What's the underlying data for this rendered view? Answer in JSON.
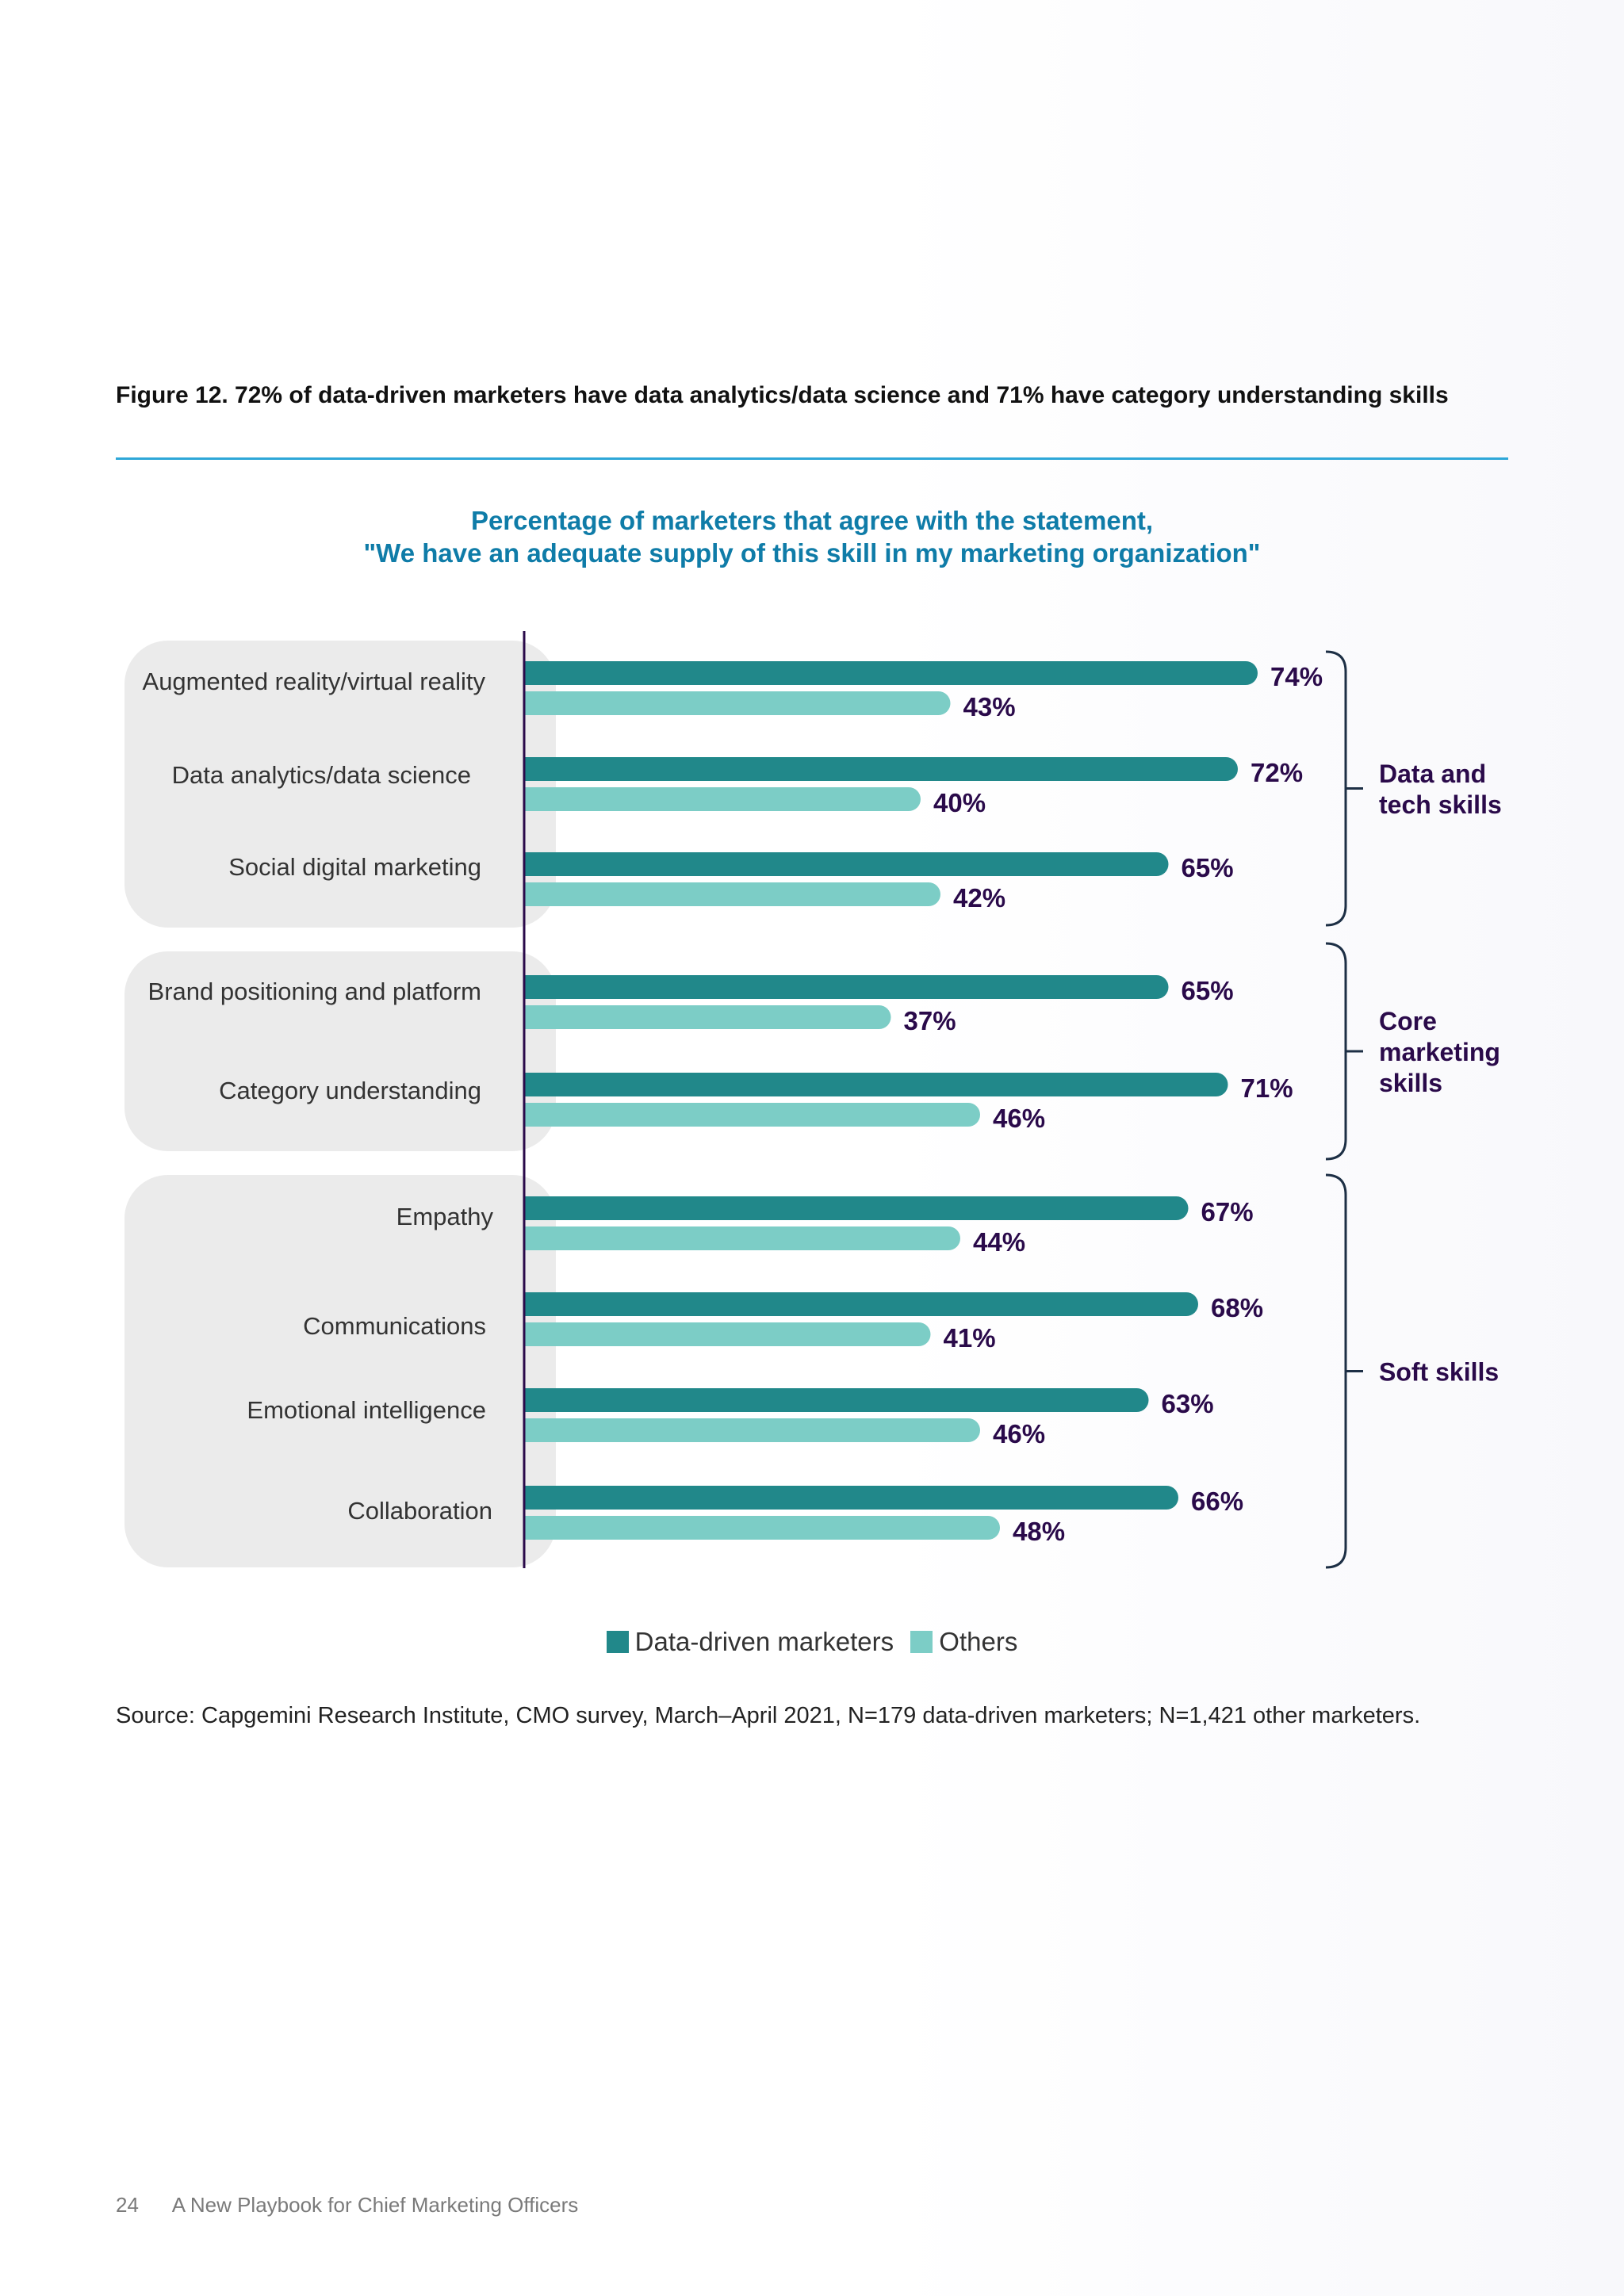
{
  "figure": {
    "title": "Figure 12. 72% of data-driven marketers have data analytics/data science and 71% have category understanding skills",
    "heading_line1": "Percentage of marketers that agree with the statement,",
    "heading_line2": "\"We have an adequate supply of this skill in my marketing organization\""
  },
  "colors": {
    "data_driven": "#21888a",
    "others": "#7ccdc6",
    "value_label": "#2a0a4a",
    "bracket": "#1d2f45",
    "panel": "#ebebeb",
    "axis": "#2a0a4a"
  },
  "chart_data": {
    "type": "bar",
    "orientation": "horizontal",
    "xlim": [
      0,
      100
    ],
    "unit": "%",
    "categories": [
      "Augmented reality/virtual reality",
      "Data analytics/data science",
      "Social digital marketing",
      "Brand positioning and platform",
      "Category understanding",
      "Empathy",
      "Communications",
      "Emotional intelligence",
      "Collaboration"
    ],
    "series": [
      {
        "name": "Data-driven marketers",
        "values": [
          74,
          72,
          65,
          65,
          71,
          67,
          68,
          63,
          66
        ]
      },
      {
        "name": "Others",
        "values": [
          43,
          40,
          42,
          37,
          46,
          44,
          41,
          46,
          48
        ]
      }
    ],
    "value_labels": {
      "data_driven": [
        "74%",
        "72%",
        "65%",
        "65%",
        "71%",
        "67%",
        "68%",
        "63%",
        "66%"
      ],
      "others": [
        "43%",
        "40%",
        "42%",
        "37%",
        "46%",
        "44%",
        "41%",
        "46%",
        "48%"
      ]
    },
    "groups": [
      {
        "name": "Data and tech skills",
        "lines": [
          "Data and",
          "tech skills"
        ],
        "categories": [
          0,
          1,
          2
        ]
      },
      {
        "name": "Core marketing skills",
        "lines": [
          "Core",
          "marketing",
          "skills"
        ],
        "categories": [
          3,
          4
        ]
      },
      {
        "name": "Soft skills",
        "lines": [
          "Soft skills"
        ],
        "categories": [
          5,
          6,
          7,
          8
        ]
      }
    ],
    "legend": [
      "Data-driven marketers",
      "Others"
    ],
    "legend_position": "bottom-center",
    "grid": false
  },
  "source": "Source: Capgemini Research Institute, CMO survey, March–April 2021, N=179 data-driven marketers; N=1,421 other marketers.",
  "footer": {
    "page_number": "24",
    "document_title": "A New Playbook for  Chief Marketing Officers"
  }
}
